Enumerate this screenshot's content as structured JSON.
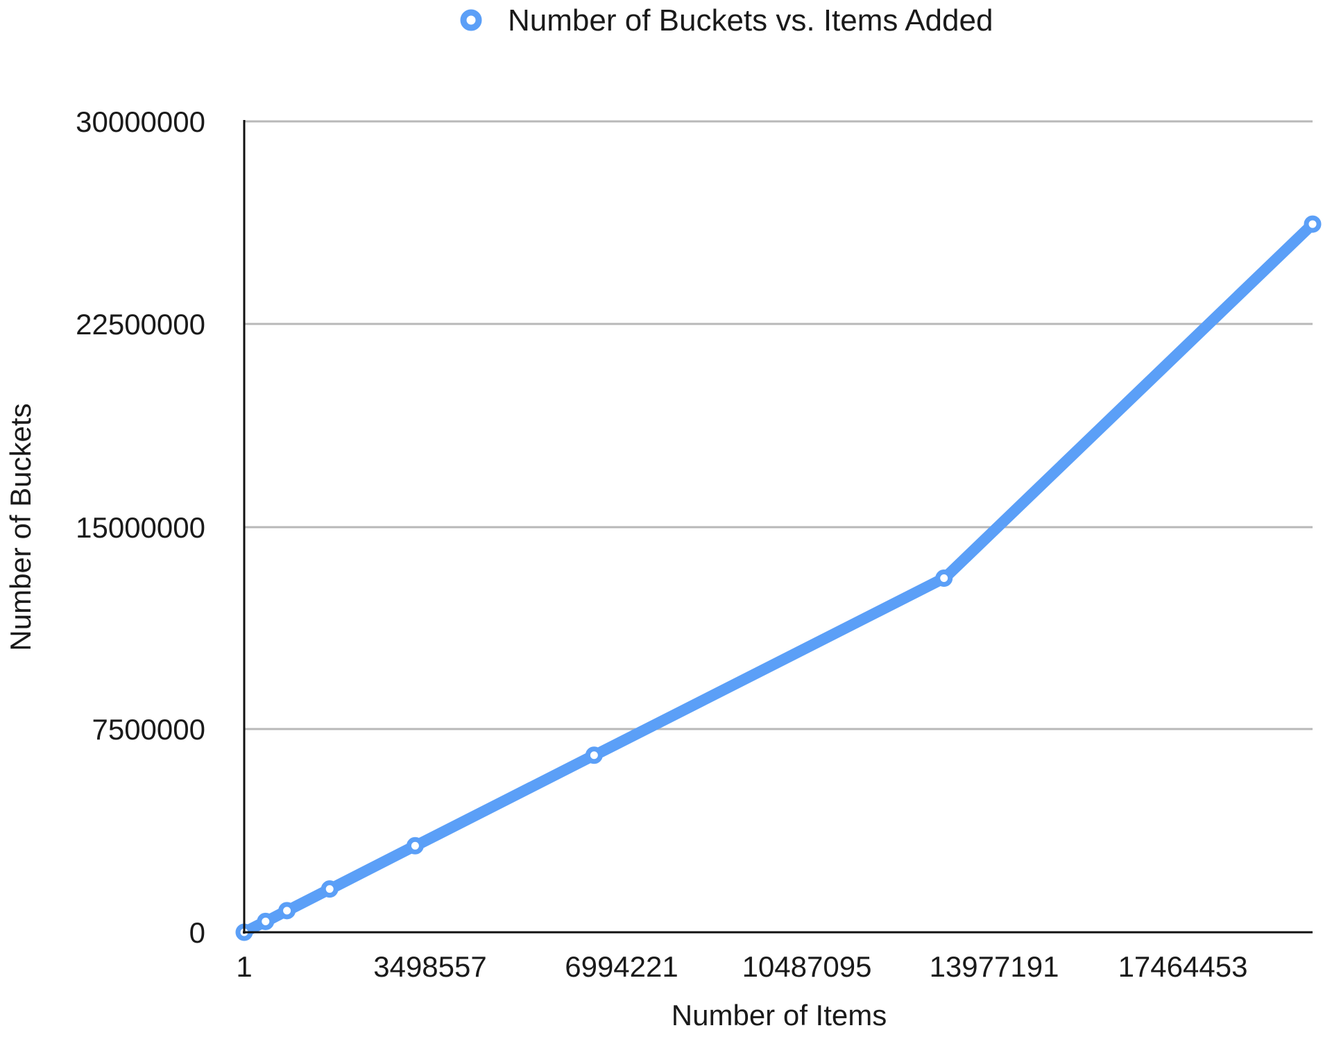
{
  "chart_data": {
    "type": "line",
    "legend": {
      "position": "top",
      "entries": [
        "Number of Buckets vs. Items Added"
      ]
    },
    "xlabel": "Number of Items",
    "ylabel": "Number of Buckets",
    "x_tick_labels": [
      "1",
      "3498557",
      "6994221",
      "10487095",
      "13977191",
      "17464453"
    ],
    "y_tick_labels": [
      "0",
      "7500000",
      "15000000",
      "22500000",
      "30000000"
    ],
    "ylim": [
      0,
      30000000
    ],
    "xlim": [
      1,
      20000000
    ],
    "grid": {
      "horizontal": true,
      "vertical": false
    },
    "colors": {
      "series": "#5B9FF7",
      "grid": "#b8b8b8",
      "axis": "#111111"
    },
    "series": [
      {
        "name": "Number of Buckets vs. Items Added",
        "points": [
          [
            1,
            0
          ],
          [
            400000,
            400000
          ],
          [
            410000,
            400000
          ],
          [
            800000,
            800000
          ],
          [
            810000,
            800000
          ],
          [
            1600000,
            1600000
          ],
          [
            1610000,
            1600000
          ],
          [
            3200000,
            3200000
          ],
          [
            3210000,
            3200000
          ],
          [
            6550000,
            6550000
          ],
          [
            6560000,
            6550000
          ],
          [
            13100000,
            13100000
          ],
          [
            13110000,
            13100000
          ],
          [
            20000000,
            26200000
          ]
        ],
        "marked_points": [
          [
            1,
            0
          ],
          [
            400000,
            400000
          ],
          [
            800000,
            800000
          ],
          [
            1600000,
            1600000
          ],
          [
            3200000,
            3200000
          ],
          [
            6550000,
            6550000
          ],
          [
            13100000,
            13100000
          ],
          [
            20000000,
            26200000
          ]
        ]
      }
    ]
  }
}
